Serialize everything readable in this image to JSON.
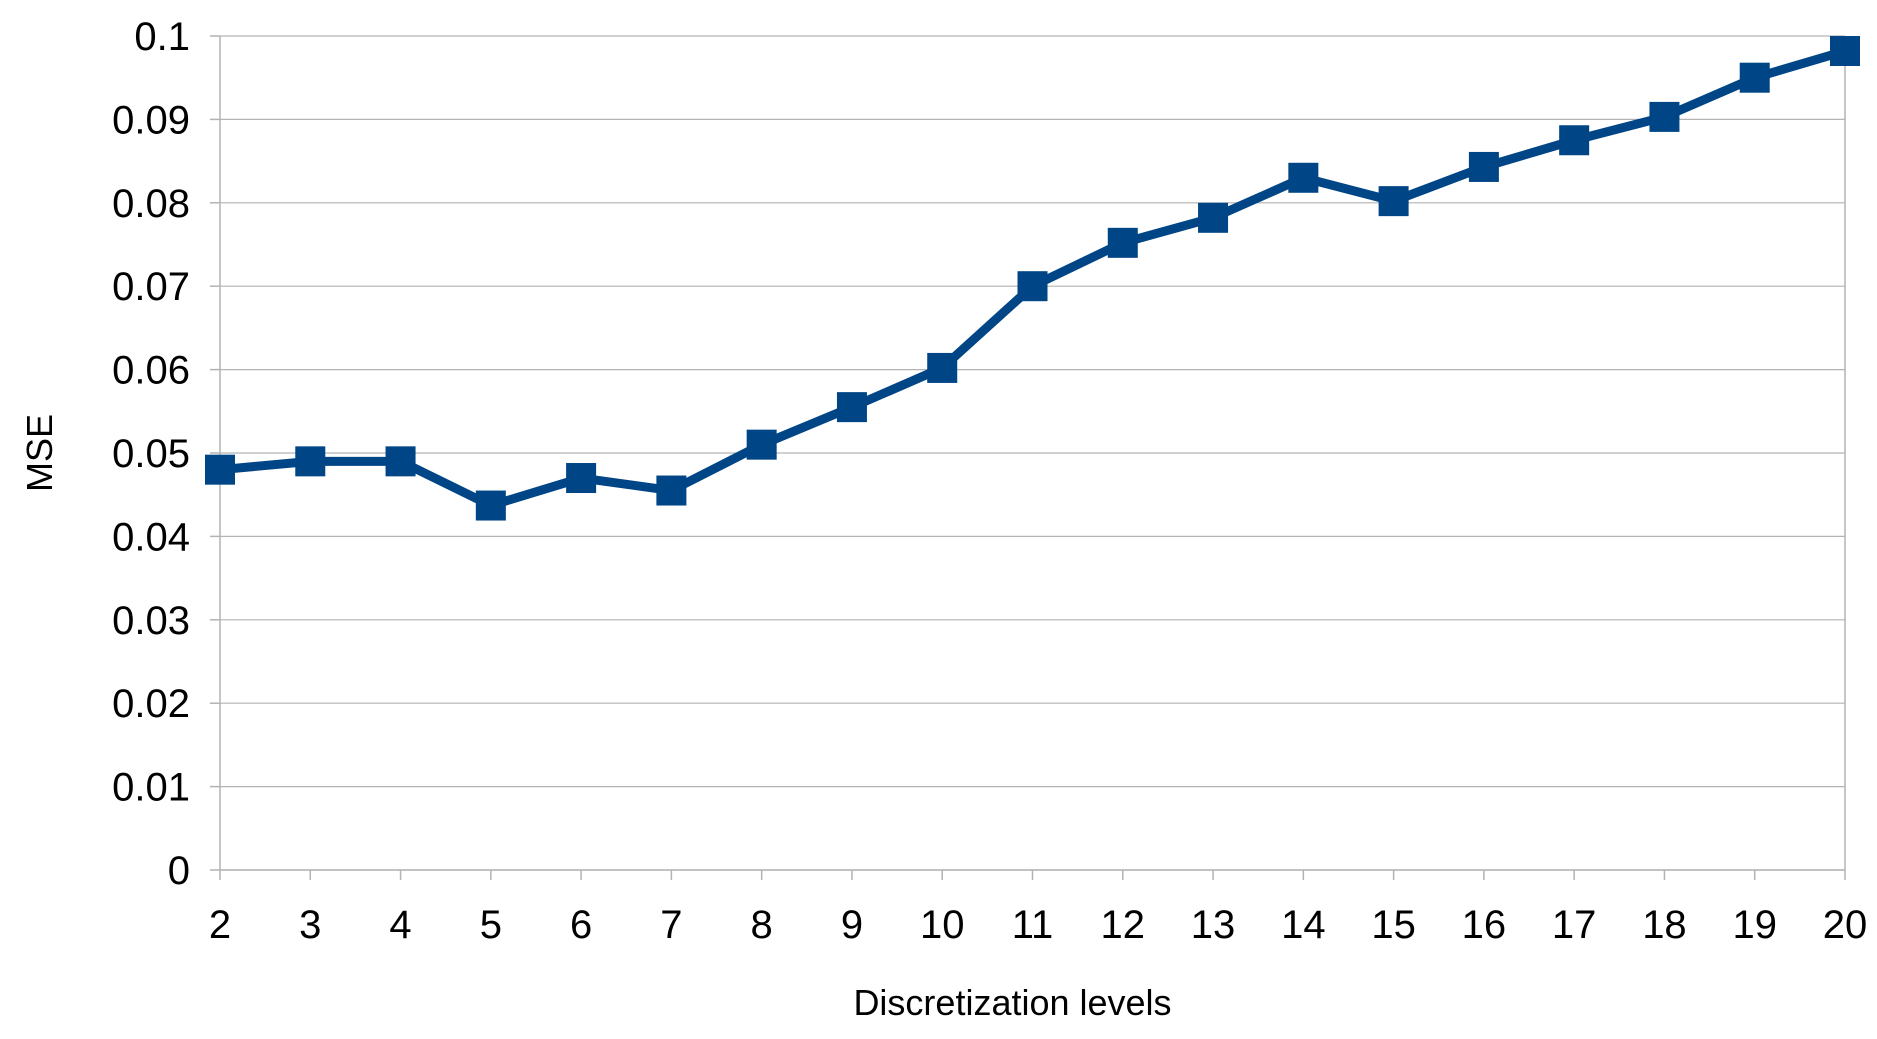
{
  "chart_data": {
    "type": "line",
    "title": "",
    "xlabel": "Discretization levels",
    "ylabel": "MSE",
    "categories": [
      "2",
      "3",
      "4",
      "5",
      "6",
      "7",
      "8",
      "9",
      "10",
      "11",
      "12",
      "13",
      "14",
      "15",
      "16",
      "17",
      "18",
      "19",
      "20"
    ],
    "series": [
      {
        "values": [
          0.048,
          0.049,
          0.049,
          0.0437,
          0.047,
          0.0455,
          0.051,
          0.0555,
          0.0602,
          0.07,
          0.0752,
          0.0782,
          0.083,
          0.0802,
          0.0843,
          0.0875,
          0.0903,
          0.095,
          0.0982
        ],
        "color": "#004586",
        "marker": "square"
      }
    ],
    "ylim": [
      0,
      0.1
    ],
    "yticks": [
      "0",
      "0.01",
      "0.02",
      "0.03",
      "0.04",
      "0.05",
      "0.06",
      "0.07",
      "0.08",
      "0.09",
      "0.1"
    ],
    "grid": true,
    "legend": "none"
  }
}
